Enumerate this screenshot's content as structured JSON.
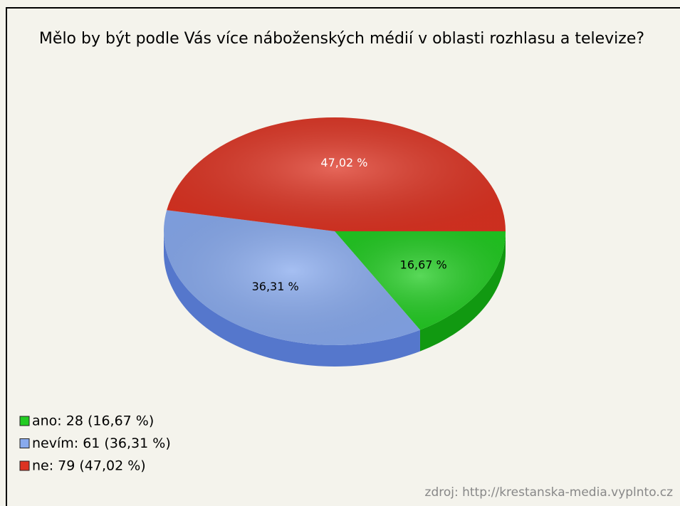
{
  "chart_data": {
    "type": "pie",
    "title": "Mělo by být podle Vás více náboženských médií v oblasti rozhlasu a televize?",
    "categories": [
      "ano: 28 (16,67 %)",
      "nevím: 61 (36,31 %)",
      "ne: 79 (47,02 %)"
    ],
    "values": [
      16.67,
      36.31,
      47.02
    ],
    "value_labels": [
      "16,67 %",
      "36,31 %",
      "47,02 %"
    ],
    "colors": [
      "#22cc22",
      "#88aaee",
      "#dd3322"
    ],
    "side_colors": [
      "#119911",
      "#5577cc",
      "#aa2211"
    ],
    "label_colors": [
      "#000000",
      "#000000",
      "#ffffff"
    ],
    "source": "zdroj: http://krestanska-media.vyplnto.cz"
  }
}
